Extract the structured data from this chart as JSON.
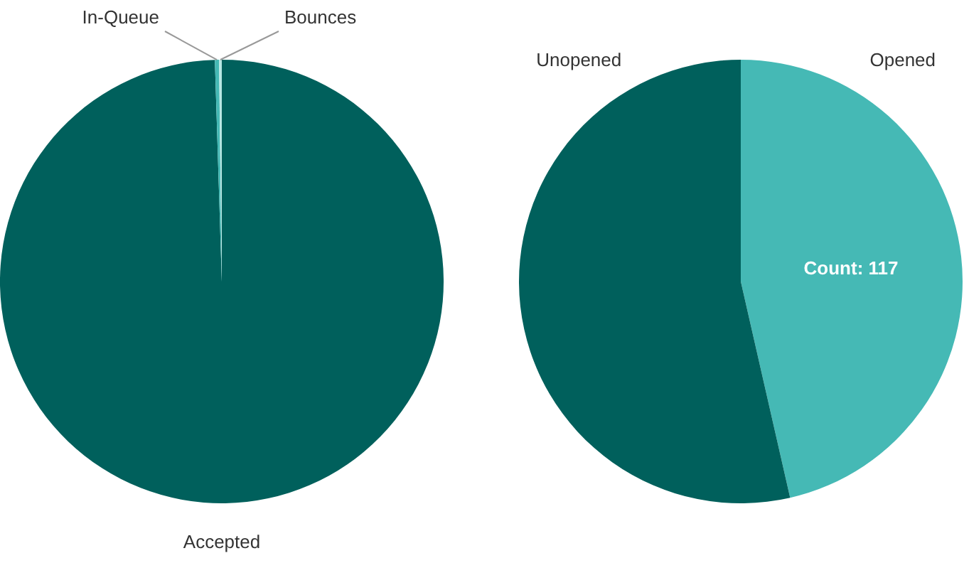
{
  "chart_data": [
    {
      "type": "pie",
      "categories": [
        "Accepted",
        "In-Queue",
        "Bounces"
      ],
      "values": [
        99.5,
        0.3,
        0.2
      ],
      "colors": [
        "#00605c",
        "#45b9b5",
        "#b8e8e4"
      ],
      "legend": false
    },
    {
      "type": "pie",
      "categories": [
        "Opened",
        "Unopened"
      ],
      "values": [
        117,
        135
      ],
      "colors": [
        "#45b9b5",
        "#00605c"
      ],
      "value_labels": [
        "Count: 117",
        null
      ],
      "legend": false
    }
  ]
}
